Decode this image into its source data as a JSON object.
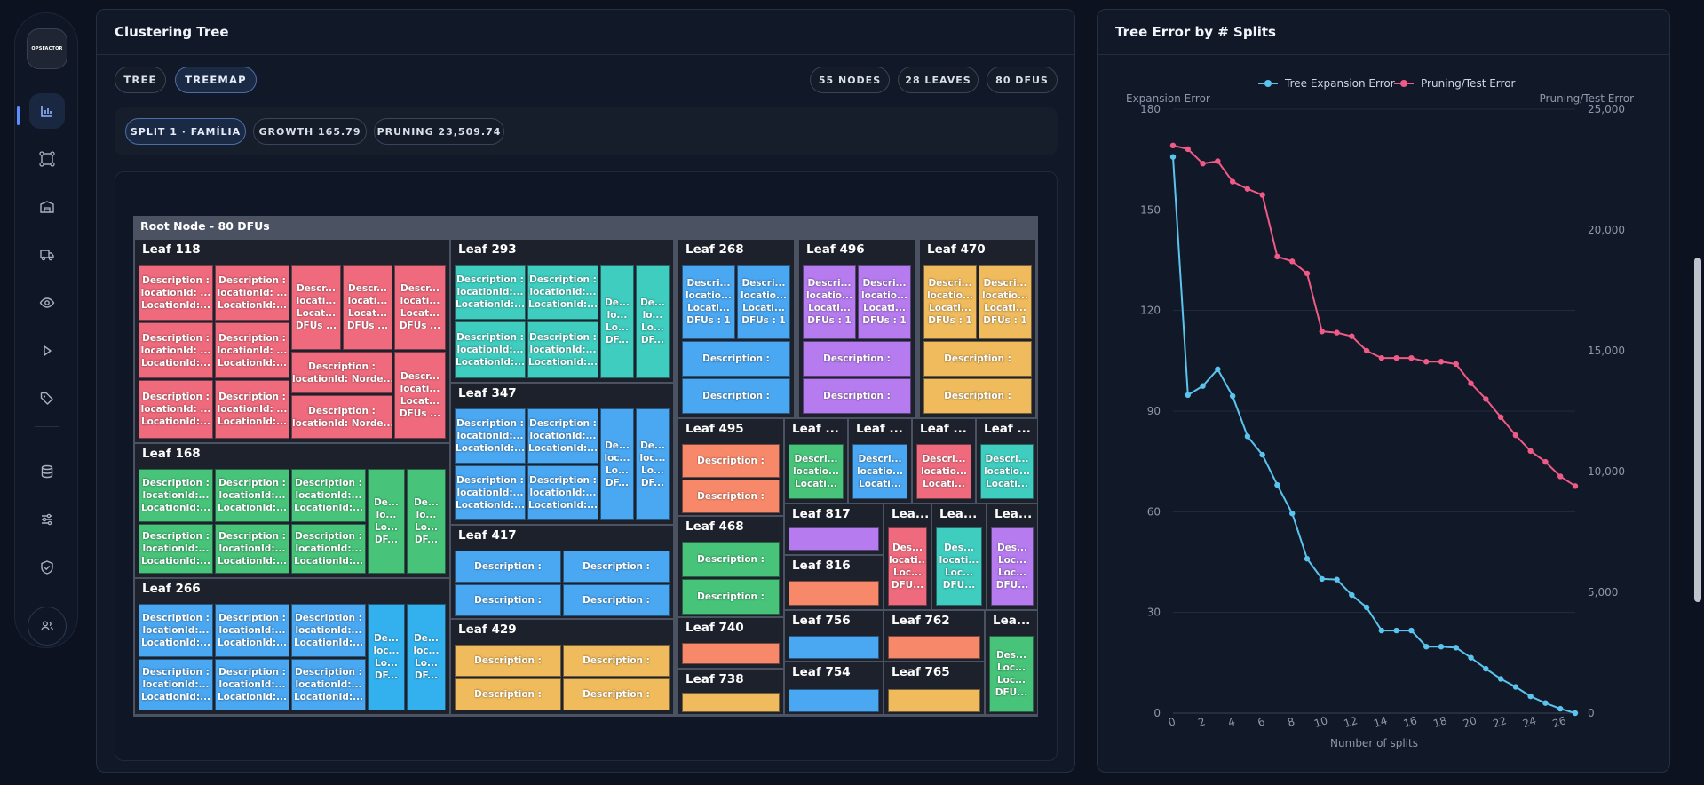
{
  "sidebar": {
    "logo_text": "OPSFACTOR",
    "items": [
      {
        "icon": "bar-chart-icon",
        "active": true
      },
      {
        "icon": "nodes-icon",
        "active": false
      },
      {
        "icon": "warehouse-icon",
        "active": false
      },
      {
        "icon": "truck-icon",
        "active": false
      },
      {
        "icon": "eye-icon",
        "active": false
      },
      {
        "icon": "play-icon",
        "active": false
      },
      {
        "icon": "tag-icon",
        "active": false
      },
      {
        "icon": "database-icon",
        "active": false
      },
      {
        "icon": "sliders-icon",
        "active": false
      },
      {
        "icon": "shield-check-icon",
        "active": false
      }
    ],
    "user_icon": "users-icon"
  },
  "left_card": {
    "title": "Clustering Tree",
    "view_tabs": [
      {
        "label": "TREE",
        "active": false
      },
      {
        "label": "TREEMAP",
        "active": true
      }
    ],
    "stats": [
      "55 NODES",
      "28 LEAVES",
      "80 DFUS"
    ],
    "split_chips": [
      {
        "label": "SPLIT 1 · FAMÍLIA",
        "active": true
      },
      {
        "label": "GROWTH 165.79",
        "active": false
      },
      {
        "label": "PRUNING 23,509.74",
        "active": false
      }
    ],
    "treemap": {
      "root": "Root Node - 80 DFUs",
      "colors": {
        "red": "#ee6a7c",
        "teal": "#3fcdbf",
        "blue": "#4aa7f1",
        "purple": "#b57bef",
        "orange": "#f0bb5d",
        "green": "#47c479",
        "salmon": "#f7886a"
      },
      "leaves": [
        {
          "name": "Leaf 118",
          "color": "red"
        },
        {
          "name": "Leaf 168",
          "color": "green"
        },
        {
          "name": "Leaf 266",
          "color": "blue"
        },
        {
          "name": "Leaf 293",
          "color": "teal"
        },
        {
          "name": "Leaf 347",
          "color": "blue"
        },
        {
          "name": "Leaf 417",
          "color": "blue"
        },
        {
          "name": "Leaf 429",
          "color": "orange"
        },
        {
          "name": "Leaf 268",
          "color": "blue"
        },
        {
          "name": "Leaf 496",
          "color": "purple"
        },
        {
          "name": "Leaf 470",
          "color": "orange"
        },
        {
          "name": "Leaf 495",
          "color": "salmon"
        },
        {
          "name": "Leaf 468",
          "color": "green"
        },
        {
          "name": "Leaf 740",
          "color": "salmon"
        },
        {
          "name": "Leaf 738",
          "color": "orange"
        },
        {
          "name": "Leaf ...",
          "color": "green"
        },
        {
          "name": "Leaf ...",
          "color": "blue"
        },
        {
          "name": "Leaf ...",
          "color": "red"
        },
        {
          "name": "Leaf ...",
          "color": "teal"
        },
        {
          "name": "Leaf 817",
          "color": "purple"
        },
        {
          "name": "Lea...",
          "color": "red"
        },
        {
          "name": "Lea...",
          "color": "teal"
        },
        {
          "name": "Lea...",
          "color": "purple"
        },
        {
          "name": "Leaf 816",
          "color": "salmon"
        },
        {
          "name": "Leaf 756",
          "color": "blue"
        },
        {
          "name": "Leaf 762",
          "color": "salmon"
        },
        {
          "name": "Lea...",
          "color": "green"
        },
        {
          "name": "Leaf 754",
          "color": "blue"
        },
        {
          "name": "Leaf 765",
          "color": "orange"
        }
      ],
      "labels": {
        "desc3": "Description :\nlocationId: ...\nLocationId:...",
        "desc3b": "Description :\nlocationId:...\nLocationId:...",
        "desc4": "Descr...\nlocati...\nLocat...\nDFUs ...",
        "desc4b": "Desc...\nlocati...\nLocati...\nDFUs ...",
        "descNorde": "Description :\nlocationId: Norde...",
        "narrow": "De...\nlo...\nLo...\nDF...",
        "narrow2": "De...\nloc...\nLo...\nDF...",
        "desc": "Description :",
        "dfu1": "Descri...\nlocatio...\nLocati...\nDFUs : 1",
        "small3": "Descri...\nlocatio...\nLocati...",
        "small4": "Des...\nlocati...\nLoc...\nDFU...",
        "small4b": "Des...\nLoc...\nLoc...\nDFU..."
      }
    }
  },
  "right_card": {
    "title": "Tree Error by # Splits"
  },
  "chart_data": {
    "type": "line",
    "title": "Tree Error by # Splits",
    "xlabel": "Number of splits",
    "y_left_label": "Expansion Error",
    "y_right_label": "Pruning/Test Error",
    "x_ticks": [
      0,
      2,
      4,
      6,
      8,
      10,
      12,
      14,
      16,
      18,
      20,
      22,
      24,
      26
    ],
    "y_left_ticks": [
      0,
      30,
      60,
      90,
      120,
      150,
      180
    ],
    "y_right_ticks": [
      "0",
      "5,000",
      "10,000",
      "15,000",
      "20,000",
      "25,000"
    ],
    "xlim": [
      0,
      27
    ],
    "ylim_left": [
      0,
      180
    ],
    "ylim_right": [
      0,
      25000
    ],
    "grid": true,
    "legend_position": "top-center",
    "x": [
      0,
      1,
      2,
      3,
      4,
      5,
      6,
      7,
      8,
      9,
      10,
      11,
      12,
      13,
      14,
      15,
      16,
      17,
      18,
      19,
      20,
      21,
      22,
      23,
      24,
      25,
      26,
      27
    ],
    "series": [
      {
        "name": "Tree Expansion Error",
        "axis": "left",
        "color": "#5bc4ee",
        "values": [
          165.8,
          94.8,
          97.5,
          102.5,
          94.5,
          82.5,
          77.0,
          68.0,
          59.5,
          46.0,
          40.0,
          39.8,
          35.2,
          31.5,
          24.6,
          24.6,
          24.6,
          19.8,
          19.8,
          19.5,
          16.5,
          13.2,
          10.2,
          7.8,
          5.0,
          3.0,
          1.3,
          0
        ]
      },
      {
        "name": "Pruning/Test Error",
        "axis": "right",
        "color": "#f05a86",
        "values": [
          23500,
          23350,
          22750,
          22850,
          22000,
          21700,
          21450,
          18900,
          18700,
          18200,
          15800,
          15750,
          15600,
          15000,
          14700,
          14700,
          14700,
          14550,
          14550,
          14450,
          13650,
          13000,
          12250,
          11500,
          10850,
          10400,
          9800,
          9400
        ]
      }
    ]
  }
}
